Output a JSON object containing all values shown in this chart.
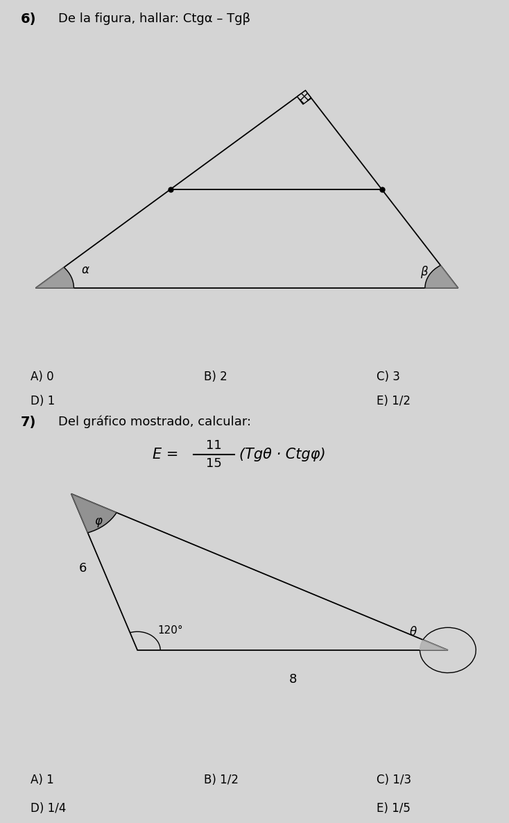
{
  "bg_color": "#d4d4d4",
  "problem6": {
    "title_num": "6)",
    "title_text": "De la figura, hallar: ",
    "title_formula": "Ctgα – Tgβ",
    "tri_A": [
      0.07,
      0.3
    ],
    "tri_B": [
      0.9,
      0.3
    ],
    "tri_C": [
      0.6,
      0.78
    ],
    "answers_row1": [
      "A) 0",
      "B) 2",
      "C) 3"
    ],
    "answers_row2": [
      "D) 1",
      "E) 1/2"
    ],
    "alpha_label": "α",
    "beta_label": "β"
  },
  "problem7": {
    "title_num": "7)",
    "title_text": "Del gráfico mostrado, calcular:",
    "formula_num": "11",
    "formula_den": "15",
    "formula_right": "(Tgθ · Ctgφ)",
    "tri_A": [
      0.14,
      0.8
    ],
    "tri_B": [
      0.27,
      0.42
    ],
    "tri_C": [
      0.88,
      0.42
    ],
    "side6_label": "6",
    "side8_label": "8",
    "angle120_label": "120°",
    "phi_label": "φ",
    "theta_label": "θ",
    "answers_row1": [
      "A) 1",
      "B) 1/2",
      "C) 1/3"
    ],
    "answers_row2": [
      "D) 1/4",
      "E) 1/5"
    ]
  }
}
